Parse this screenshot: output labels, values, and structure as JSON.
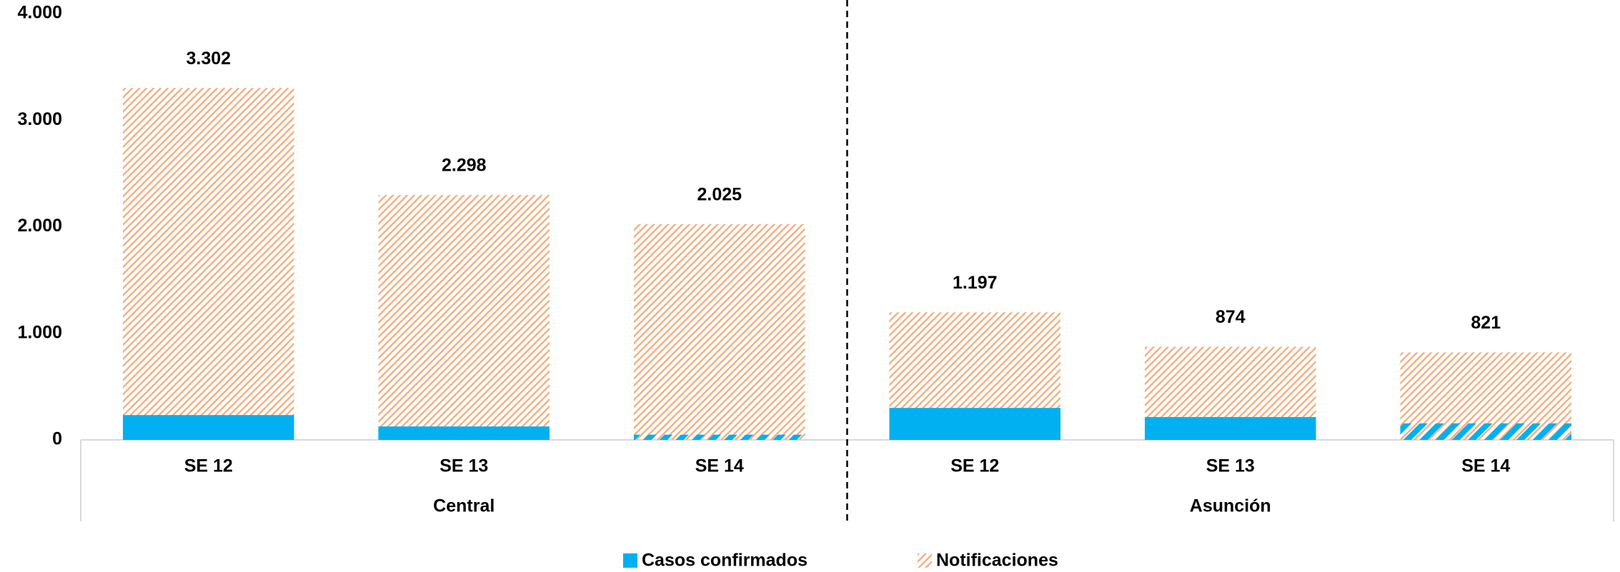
{
  "chart_data": {
    "type": "bar",
    "categories": [
      "SE 12",
      "SE 13",
      "SE 14",
      "SE 12",
      "SE 13",
      "SE 14"
    ],
    "groups": [
      "Central",
      "Asunción"
    ],
    "series": [
      {
        "name": "Notificaciones",
        "color": "#F4B183",
        "values": [
          3302,
          2298,
          2025,
          1197,
          874,
          821
        ],
        "value_labels": [
          "3.302",
          "2.298",
          "2.025",
          "1.197",
          "874",
          "821"
        ],
        "patterns": [
          "hatch",
          "hatch",
          "hatch",
          "hatch",
          "hatch",
          "hatch"
        ]
      },
      {
        "name": "Casos confirmados",
        "color": "#00B0F0",
        "values": [
          233,
          126,
          49,
          300,
          214,
          155
        ],
        "patterns": [
          "solid",
          "solid",
          "hatch",
          "solid",
          "solid",
          "hatch"
        ]
      }
    ],
    "ylim": [
      0,
      4000
    ],
    "yticks": [
      0,
      {
        "value": 1000,
        "label": "1.000"
      },
      {
        "value": 2000,
        "label": "2.000"
      },
      {
        "value": 3000,
        "label": "3.000"
      },
      {
        "value": 4000,
        "label": "4.000"
      }
    ],
    "grid": false,
    "legend": "bottom"
  }
}
